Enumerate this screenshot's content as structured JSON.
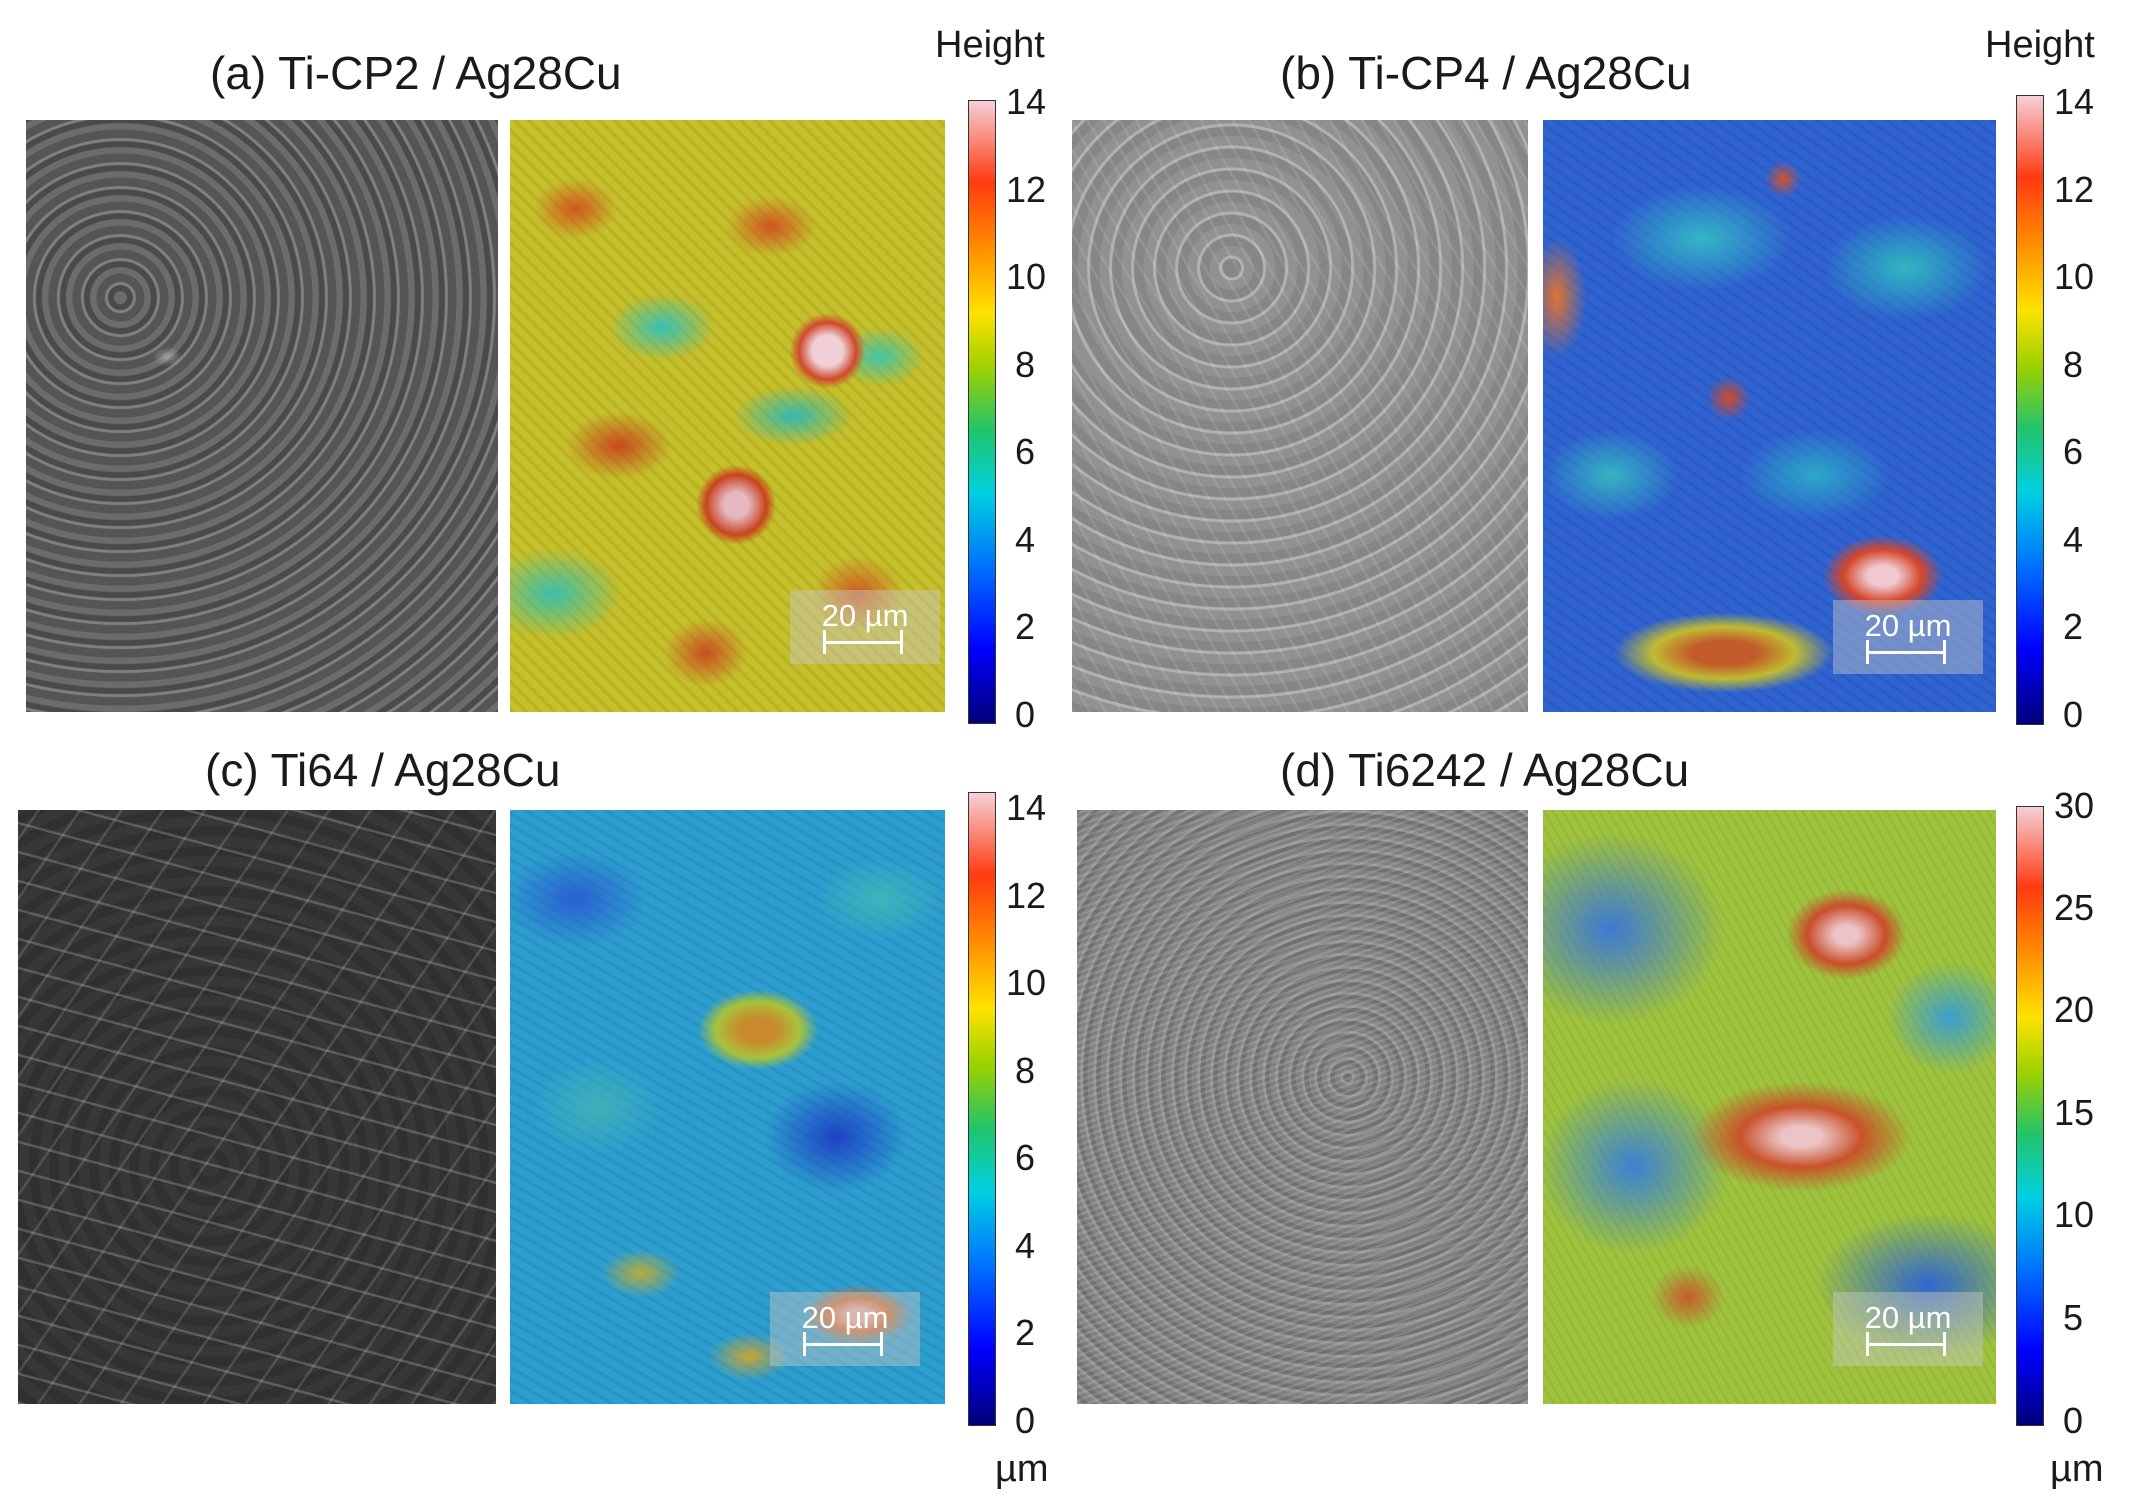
{
  "panels": [
    {
      "id": "a",
      "title": "(a) Ti-CP2 / Ag28Cu",
      "scalebar": "20 µm"
    },
    {
      "id": "b",
      "title": "(b) Ti-CP4 / Ag28Cu",
      "scalebar": "20 µm"
    },
    {
      "id": "c",
      "title": "(c) Ti64 / Ag28Cu",
      "scalebar": "20 µm"
    },
    {
      "id": "d",
      "title": "(d) Ti6242 / Ag28Cu",
      "scalebar": "20 µm"
    }
  ],
  "colorbars": [
    {
      "title": "Height",
      "ticks": [
        "14",
        "12",
        "10",
        "8",
        "6",
        "4",
        "2",
        "0"
      ]
    },
    {
      "title": "Height",
      "ticks": [
        "14",
        "12",
        "10",
        "8",
        "6",
        "4",
        "2",
        "0"
      ]
    },
    {
      "unit": "µm",
      "ticks": [
        "14",
        "12",
        "10",
        "8",
        "6",
        "4",
        "2",
        "0"
      ]
    },
    {
      "unit": "µm",
      "ticks": [
        "30",
        "25",
        "20",
        "15",
        "10",
        "5",
        "0"
      ]
    }
  ]
}
